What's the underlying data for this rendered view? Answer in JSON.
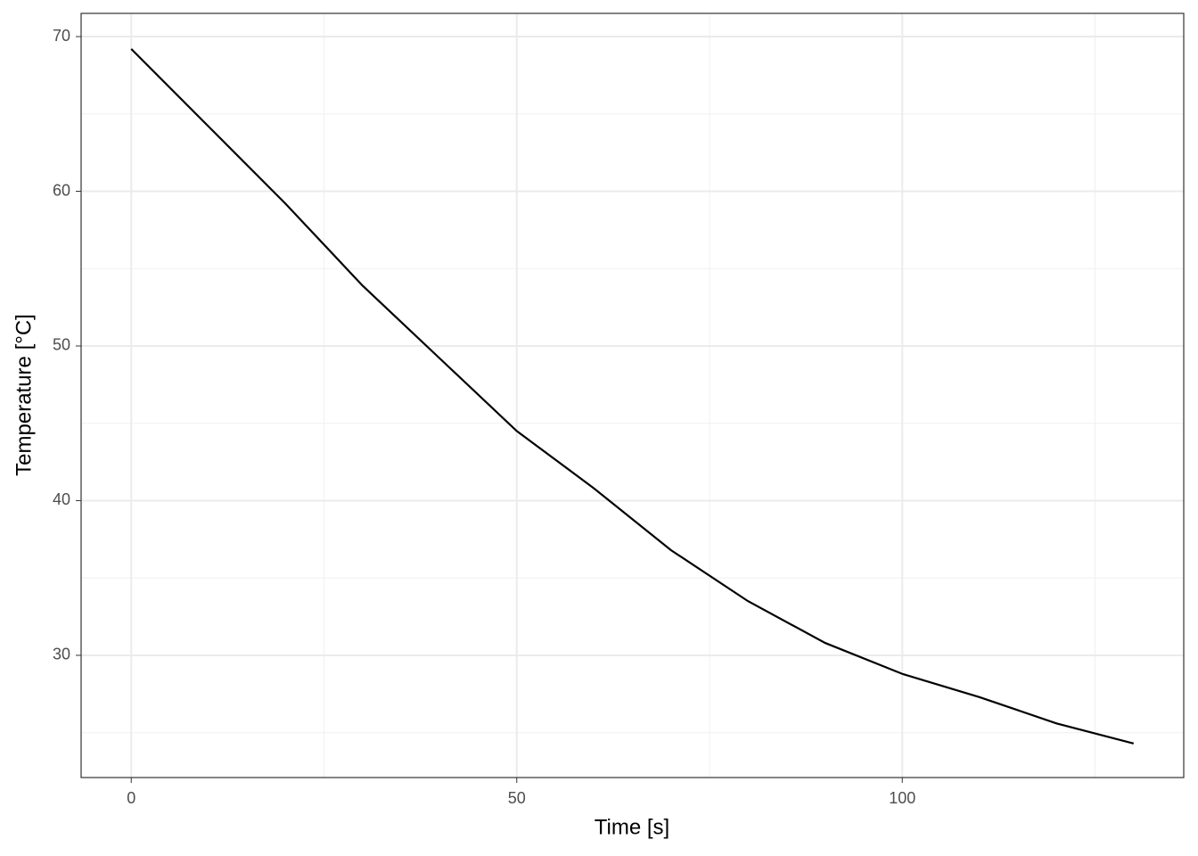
{
  "chart_data": {
    "type": "line",
    "x_label": "Time [s]",
    "y_label": "Temperature [°C]",
    "series": [
      {
        "name": "Temperature",
        "color": "#000000",
        "x": [
          0,
          10,
          20,
          30,
          40,
          50,
          60,
          70,
          80,
          90,
          100,
          110,
          120,
          130
        ],
        "values": [
          69.2,
          64.2,
          59.2,
          53.9,
          49.2,
          44.5,
          40.8,
          36.8,
          33.5,
          30.8,
          28.8,
          27.3,
          25.6,
          24.3
        ]
      }
    ],
    "xlim": [
      -6.5,
      136.5
    ],
    "xticks": [
      0,
      50,
      100
    ],
    "ylim": [
      22.1,
      71.5
    ],
    "yticks": [
      30,
      40,
      50,
      60,
      70
    ],
    "grid": true,
    "minor_grid": true
  }
}
